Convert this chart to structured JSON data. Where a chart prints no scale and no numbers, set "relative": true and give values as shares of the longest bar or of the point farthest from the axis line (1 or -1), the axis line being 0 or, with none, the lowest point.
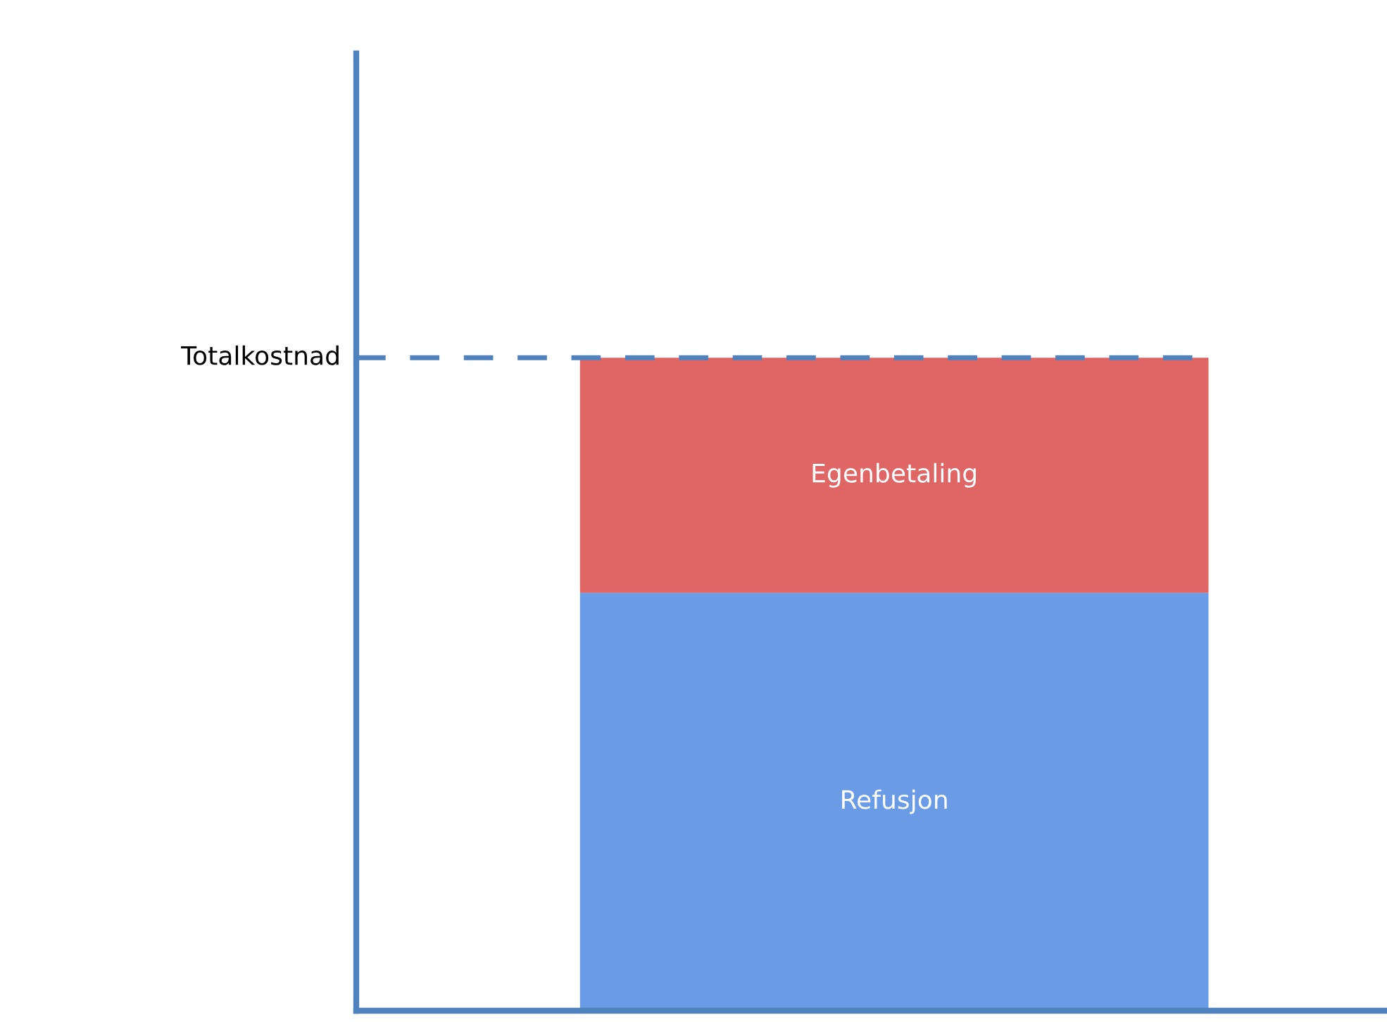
{
  "chart_data": {
    "type": "bar",
    "stacked": true,
    "relative": true,
    "categories": [
      null
    ],
    "series": [
      {
        "name": "Refusjon",
        "color": "#6a9be6",
        "values": [
          0.64
        ]
      },
      {
        "name": "Egenbetaling",
        "color": "#e06666",
        "values": [
          0.36
        ]
      }
    ],
    "ref_lines": [
      {
        "axis": "y",
        "value": 1,
        "label": "Totalkostnad",
        "color": "#4f81bd",
        "line_style": "dashed"
      }
    ],
    "legend": false
  }
}
